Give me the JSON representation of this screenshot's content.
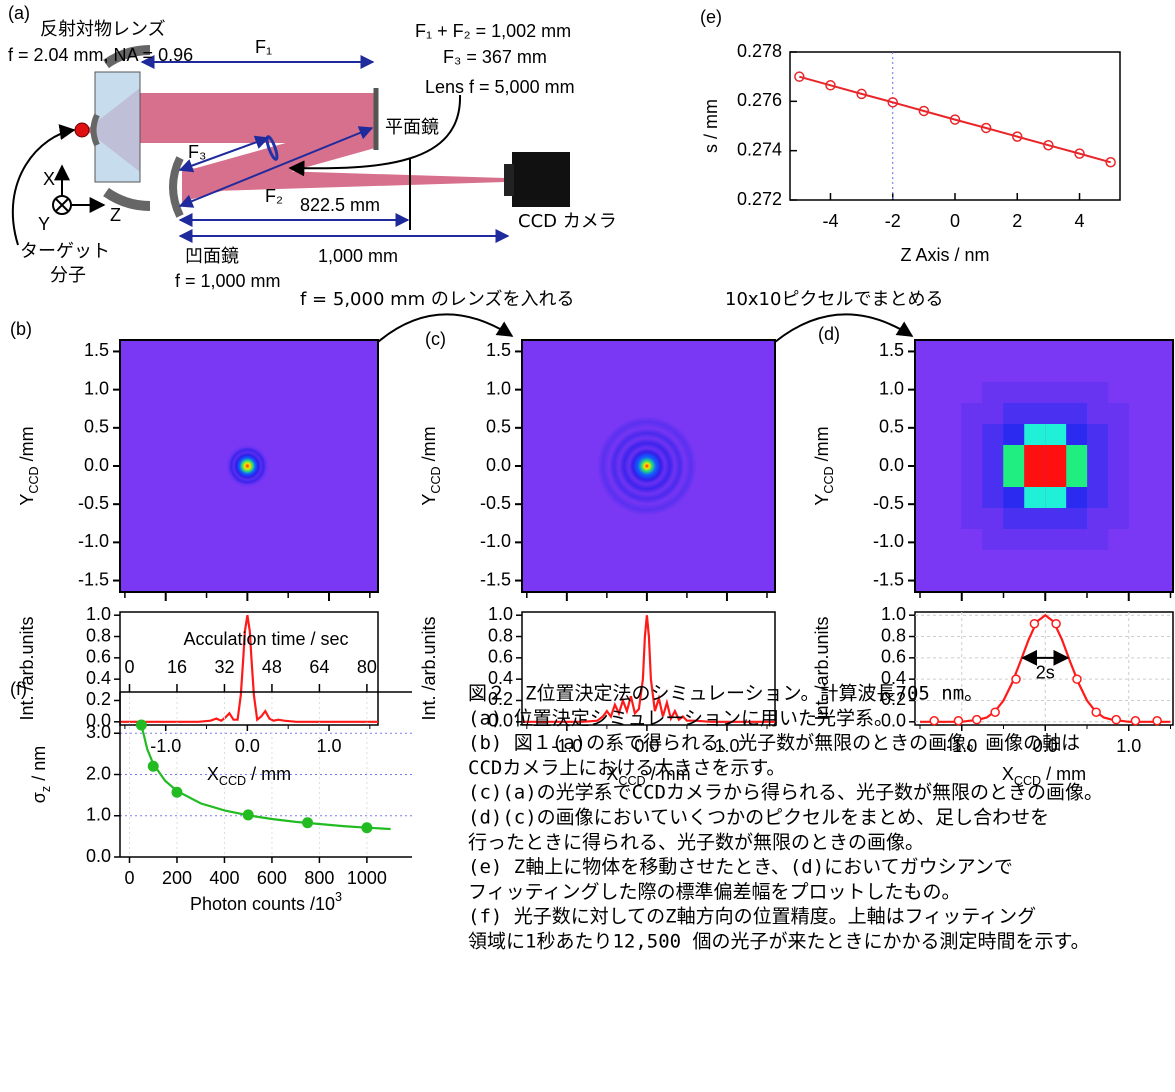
{
  "diagram": {
    "panel_label": "(a)",
    "objective": "反射対物レンズ",
    "objective_spec": "f = 2.04 mm, NA = 0.96",
    "f1": "F₁",
    "f_sum": "F₁ + F₂ = 1,002 mm",
    "f3_spec": "F₃ = 367 mm",
    "lens_spec": "Lens f = 5,000 mm",
    "flat_mirror": "平面鏡",
    "f3": "F₃",
    "f2": "F₂",
    "d_lens": "822.5 mm",
    "camera": "CCD カメラ",
    "concave_mirror": "凹面鏡",
    "concave_spec": "f = 1,000 mm",
    "d_camera": "1,000 mm",
    "axis_x": "X",
    "axis_y": "Y",
    "axis_z": "Z",
    "target_1": "ターゲット",
    "target_2": "分子"
  },
  "steps": {
    "lens": "f = 5,000 mm のレンズを入れる",
    "binning": "10x10ピクセルでまとめる"
  },
  "chart_data": [
    {
      "type": "profile",
      "panel_label": "(b)",
      "image": {
        "ylabel": [
          "Y",
          "CCD",
          " /mm"
        ],
        "ylim": [
          -1.65,
          1.65
        ],
        "yticks": [
          1.5,
          {
            "value": 1,
            "label": "1.0"
          },
          0.5,
          {
            "value": 0,
            "label": "0.0"
          },
          -0.5,
          {
            "value": -1,
            "label": "-1.0"
          },
          -1.5
        ]
      },
      "profile": {
        "ylabel": "Int. /arb.units",
        "ylim": [
          -0.03,
          1.03
        ],
        "yticks": [
          {
            "value": 0,
            "label": "0.0"
          },
          0.2,
          0.4,
          0.6,
          0.8,
          {
            "value": 1,
            "label": "1.0"
          }
        ]
      },
      "xlabel": [
        "X",
        "CCD",
        " / mm"
      ],
      "xlim": [
        -1.56,
        1.6
      ],
      "xticks": [
        {
          "value": -1,
          "label": "-1.0"
        },
        {
          "value": 0,
          "label": "0.0"
        },
        {
          "value": 1,
          "label": "1.0"
        }
      ],
      "xminor": [
        -1.5,
        -0.5,
        0.5,
        1.5
      ],
      "x": [
        -1.55,
        -0.6,
        -0.45,
        -0.38,
        -0.32,
        -0.27,
        -0.22,
        -0.17,
        -0.12,
        -0.08,
        -0.05,
        -0.03,
        0,
        0.03,
        0.05,
        0.08,
        0.12,
        0.17,
        0.22,
        0.27,
        0.32,
        0.38,
        0.45,
        0.6,
        1.6
      ],
      "values": [
        0,
        0,
        0.01,
        0.03,
        0.01,
        0.04,
        0.08,
        0.02,
        0.02,
        0.25,
        0.6,
        0.85,
        1.0,
        0.85,
        0.6,
        0.25,
        0.02,
        0.05,
        0.1,
        0.03,
        0.01,
        0.02,
        0.01,
        0,
        0
      ],
      "color": "#ff1a1a",
      "grid": false
    },
    {
      "type": "profile",
      "panel_label": "(c)",
      "image": {
        "ylabel": [
          "Y",
          "CCD",
          " /mm"
        ],
        "ylim": [
          -1.65,
          1.65
        ],
        "yticks": [
          1.5,
          {
            "value": 1,
            "label": "1.0"
          },
          0.5,
          {
            "value": 0,
            "label": "0.0"
          },
          -0.5,
          {
            "value": -1,
            "label": "-1.0"
          },
          -1.5
        ]
      },
      "profile": {
        "ylabel": "Int. /arb.units",
        "ylim": [
          -0.03,
          1.03
        ],
        "yticks": [
          {
            "value": 0,
            "label": "0.0"
          },
          0.2,
          0.4,
          0.6,
          0.8,
          {
            "value": 1,
            "label": "1.0"
          }
        ]
      },
      "xlabel": [
        "X",
        "CCD",
        " / mm"
      ],
      "xlim": [
        -1.56,
        1.6
      ],
      "xticks": [
        {
          "value": -1,
          "label": "-1.0"
        },
        {
          "value": 0,
          "label": "0.0"
        },
        {
          "value": 1,
          "label": "1.0"
        }
      ],
      "xminor": [
        -1.5,
        -0.5,
        0.5,
        1.5
      ],
      "x": [
        -1.55,
        -0.8,
        -0.62,
        -0.55,
        -0.5,
        -0.45,
        -0.4,
        -0.35,
        -0.3,
        -0.25,
        -0.2,
        -0.15,
        -0.1,
        -0.05,
        -0.025,
        0,
        0.025,
        0.05,
        0.1,
        0.15,
        0.2,
        0.25,
        0.3,
        0.35,
        0.4,
        0.45,
        0.5,
        0.6,
        0.8,
        1.6
      ],
      "values": [
        0,
        0,
        0.01,
        0.05,
        0.1,
        0.05,
        0.16,
        0.08,
        0.2,
        0.1,
        0.24,
        0.08,
        0.12,
        0.4,
        0.8,
        1.0,
        0.8,
        0.4,
        0.1,
        0.22,
        0.05,
        0.18,
        0.03,
        0.1,
        0.02,
        0.05,
        0.01,
        0.01,
        0,
        0
      ],
      "color": "#ff1a1a",
      "grid": false
    },
    {
      "type": "profile",
      "panel_label": "(d)",
      "image": {
        "ylabel": [
          "Y",
          "CCD",
          " /mm"
        ],
        "ylim": [
          -1.65,
          1.65
        ],
        "yticks": [
          1.5,
          {
            "value": 1,
            "label": "1.0"
          },
          0.5,
          {
            "value": 0,
            "label": "0.0"
          },
          -0.5,
          {
            "value": -1,
            "label": "-1.0"
          },
          -1.5
        ]
      },
      "profile": {
        "ylabel": "Int. /arb.units",
        "ylim": [
          -0.03,
          1.03
        ],
        "yticks": [
          {
            "value": 0,
            "label": "0.0"
          },
          0.2,
          0.4,
          0.6,
          0.8,
          {
            "value": 1,
            "label": "1.0"
          }
        ]
      },
      "xlabel": [
        "X",
        "CCD",
        " / mm"
      ],
      "xlim": [
        -1.56,
        1.53
      ],
      "xticks": [
        {
          "value": -1,
          "label": "-1.0"
        },
        {
          "value": 0,
          "label": "0.0"
        },
        {
          "value": 1,
          "label": "1.0"
        }
      ],
      "xminor": [
        -1.5,
        -0.5,
        0.5,
        1.5
      ],
      "x": [
        -1.5,
        -1.0,
        -0.9,
        -0.8,
        -0.7,
        -0.6,
        -0.5,
        -0.4,
        -0.3,
        -0.2,
        -0.1,
        0,
        0.1,
        0.2,
        0.3,
        0.4,
        0.5,
        0.6,
        0.7,
        0.8,
        0.9,
        1.0,
        1.5
      ],
      "values": [
        0,
        0,
        0.01,
        0.02,
        0.04,
        0.1,
        0.2,
        0.36,
        0.56,
        0.77,
        0.94,
        1.0,
        0.94,
        0.77,
        0.56,
        0.36,
        0.2,
        0.1,
        0.04,
        0.02,
        0.01,
        0,
        0
      ],
      "markers": {
        "x": [
          -1.33,
          -1.04,
          -0.82,
          -0.6,
          -0.35,
          -0.13,
          0.13,
          0.38,
          0.61,
          0.85,
          1.08,
          1.34
        ],
        "values": [
          0.01,
          0.01,
          0.02,
          0.09,
          0.4,
          0.92,
          0.92,
          0.4,
          0.09,
          0.02,
          0.01,
          0.01
        ]
      },
      "annotation": "2s",
      "span": [
        -0.27,
        0.27
      ],
      "level": 0.6,
      "color": "#ff1a1a",
      "grid": true
    },
    {
      "type": "line",
      "panel_label": "(e)",
      "xlabel": "Z Axis / nm",
      "ylabel": "s / mm",
      "x": [
        -5,
        -4,
        -3,
        -2,
        -1,
        0,
        1,
        2,
        3,
        4,
        5
      ],
      "values": [
        0.277,
        0.27665,
        0.2763,
        0.27596,
        0.27561,
        0.27526,
        0.27492,
        0.27457,
        0.27422,
        0.27388,
        0.27353
      ],
      "xlim": [
        -5.3,
        5.3
      ],
      "ylim": [
        0.272,
        0.278
      ],
      "xticks": [
        -4,
        -2,
        0,
        2,
        4
      ],
      "yticks": [
        0.272,
        0.274,
        0.276,
        0.278
      ],
      "vline": -2,
      "color": "#e8262a"
    },
    {
      "type": "scatter",
      "panel_label": "(f)",
      "xlabel": [
        "Photon counts /10",
        "3"
      ],
      "ylabel": [
        "σ",
        "z",
        " / nm"
      ],
      "x2label": "Acculation time / sec",
      "x": [
        50,
        100,
        200,
        500,
        750,
        1000
      ],
      "values": [
        3.2,
        2.2,
        1.57,
        1.02,
        0.83,
        0.71
      ],
      "fit": {
        "x": [
          50,
          75,
          100,
          150,
          200,
          300,
          400,
          500,
          600,
          700,
          800,
          900,
          1000,
          1100
        ],
        "values": [
          3.2,
          2.61,
          2.26,
          1.85,
          1.6,
          1.3,
          1.13,
          1.01,
          0.92,
          0.85,
          0.8,
          0.75,
          0.71,
          0.68
        ]
      },
      "xlim": [
        -40,
        1190
      ],
      "xticks": [
        0,
        200,
        400,
        600,
        800,
        1000
      ],
      "x2lim": [
        -3.2,
        95.2
      ],
      "x2ticks": [
        0,
        16,
        32,
        48,
        64,
        80
      ],
      "ylim": [
        0,
        4
      ],
      "yticks": [
        {
          "value": 0,
          "label": "0.0"
        },
        {
          "value": 1,
          "label": "1.0"
        },
        {
          "value": 2,
          "label": "2.0"
        },
        {
          "value": 3,
          "label": "3.0"
        }
      ],
      "grid": true,
      "color": "#22bb22"
    }
  ],
  "caption": [
    "図２　Z位置決定法のシミュレーション。計算波長705 nm。",
    "(a) 位置決定シミュレーションに用いた光学系。",
    "(b) 図１(a)の系で得られる、光子数が無限のときの画像。画像の軸は",
    "CCDカメラ上における大きさを示す。",
    "(c)(a)の光学系でCCDカメラから得られる、光子数が無限のときの画像。",
    "(d)(c)の画像においていくつかのピクセルをまとめ、足し合わせを",
    "行ったときに得られる、光子数が無限のときの画像。",
    "(e) Z軸上に物体を移動させたとき、(d)においてガウシアンで",
    "フィッティングした際の標準偏差幅をプロットしたもの。",
    "(f) 光子数に対してのZ軸方向の位置精度。上軸はフィッティング",
    "領域に1秒あたり12,500 個の光子が来たときにかかる測定時間を示す。"
  ]
}
